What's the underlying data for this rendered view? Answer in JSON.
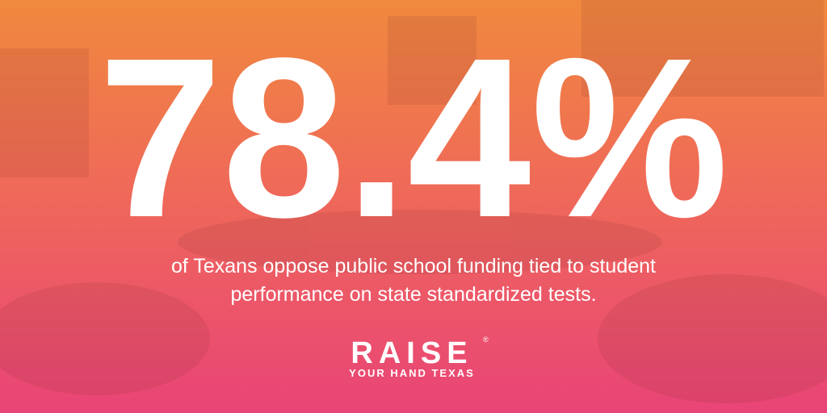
{
  "headline": {
    "stat": "78.4%",
    "caption_lines": [
      "of Texans oppose public school funding tied to student",
      "performance on state standardized tests."
    ]
  },
  "logo": {
    "name": "RAISE",
    "mark": "®",
    "tagline": "YOUR HAND TEXAS"
  }
}
